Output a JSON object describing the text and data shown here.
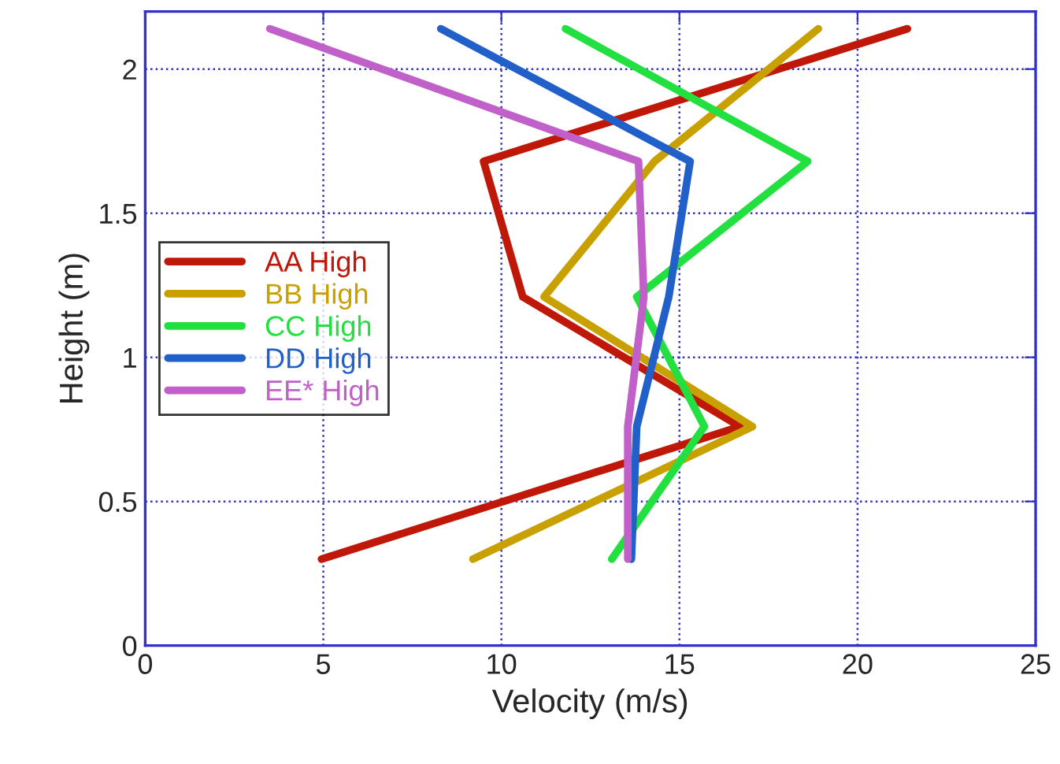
{
  "chart_data": {
    "type": "line",
    "xlabel": "Velocity (m/s)",
    "ylabel": "Height (m)",
    "xlim": [
      0,
      25
    ],
    "ylim": [
      0,
      2.2
    ],
    "xticks": [
      0,
      5,
      10,
      15,
      20,
      25
    ],
    "yticks": [
      0,
      0.5,
      1,
      1.5,
      2
    ],
    "grid": true,
    "legend": "left",
    "marker": "none",
    "line_style": "solid",
    "series": [
      {
        "name": "AA High",
        "color": "#c01808",
        "x": [
          4.95,
          16.7,
          10.6,
          9.5,
          21.4
        ],
        "values": [
          0.3,
          0.76,
          1.21,
          1.68,
          2.14
        ]
      },
      {
        "name": "BB High",
        "color": "#c8a000",
        "x": [
          9.2,
          17.05,
          11.2,
          14.3,
          18.9
        ],
        "values": [
          0.3,
          0.76,
          1.21,
          1.68,
          2.14
        ]
      },
      {
        "name": "CC High",
        "color": "#22e040",
        "x": [
          13.1,
          15.7,
          13.8,
          18.6,
          11.8
        ],
        "values": [
          0.3,
          0.76,
          1.21,
          1.68,
          2.14
        ]
      },
      {
        "name": "DD High",
        "color": "#2060c8",
        "x": [
          13.65,
          13.8,
          14.7,
          15.3,
          8.3
        ],
        "values": [
          0.3,
          0.76,
          1.21,
          1.68,
          2.14
        ]
      },
      {
        "name": "EE* High",
        "color": "#c060c8",
        "x": [
          13.55,
          13.55,
          14.0,
          13.85,
          3.5
        ],
        "values": [
          0.3,
          0.76,
          1.21,
          1.68,
          2.14
        ]
      }
    ]
  }
}
